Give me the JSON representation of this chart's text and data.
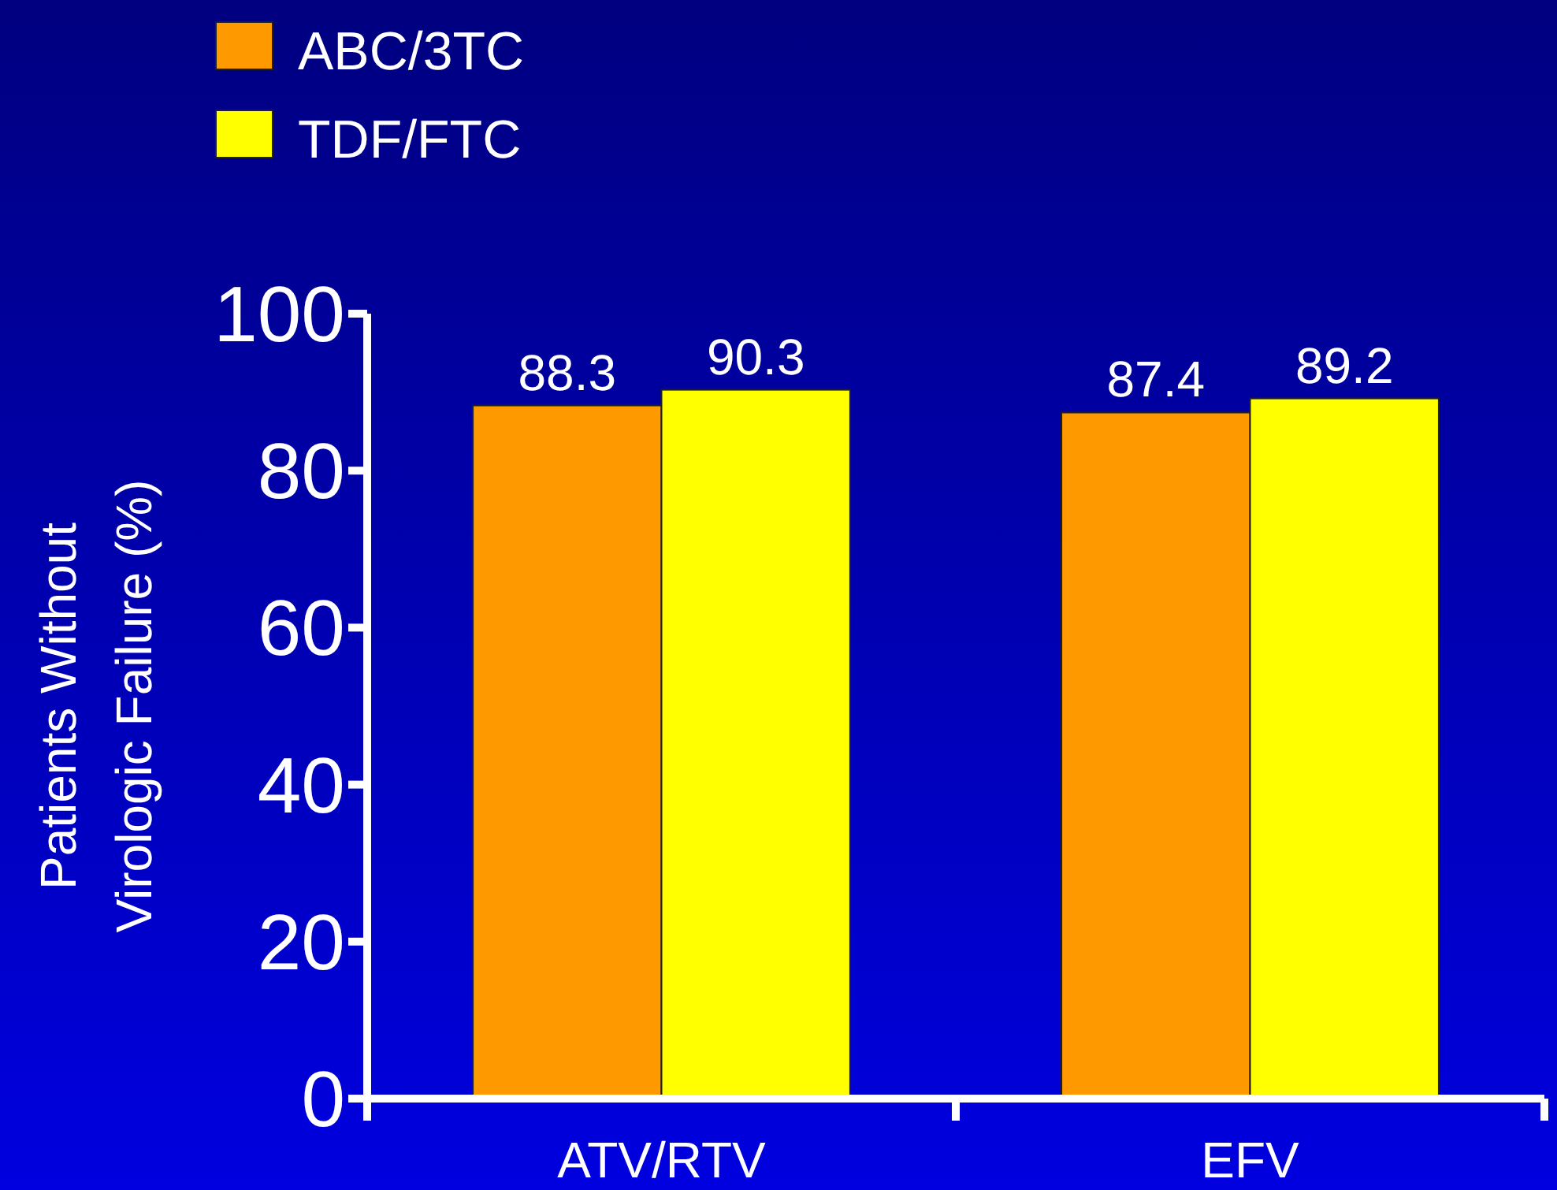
{
  "chart_data": {
    "type": "bar",
    "ylabel": "Patients Without\nVirologic Failure (%)",
    "categories": [
      "ATV/RTV",
      "EFV"
    ],
    "series": [
      {
        "name": "ABC/3TC",
        "color": "#ff9900",
        "values": [
          88.3,
          87.4
        ]
      },
      {
        "name": "TDF/FTC",
        "color": "#ffff00",
        "values": [
          90.3,
          89.2
        ]
      }
    ],
    "ylim": [
      0,
      100
    ],
    "yticks": [
      0,
      20,
      40,
      60,
      80,
      100
    ],
    "data_labels": true,
    "legend": "top left",
    "grid": false
  }
}
